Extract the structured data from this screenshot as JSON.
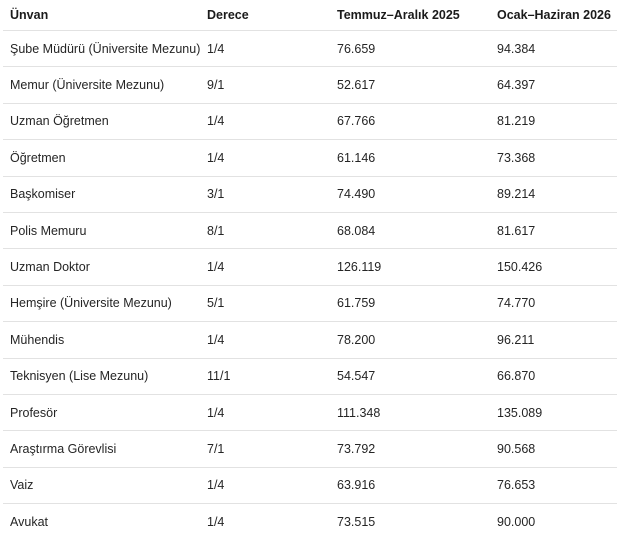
{
  "colors": {
    "background": "#ffffff",
    "header_text": "#1b1b1b",
    "body_text": "#252525",
    "divider": "#e2e2e2"
  },
  "table": {
    "columns": {
      "unvan": "Ünvan",
      "derece": "Derece",
      "temmuz_aralik_2025": "Temmuz–Aralık 2025",
      "ocak_haziran_2026": "Ocak–Haziran 2026"
    },
    "rows": [
      {
        "unvan": "Şube Müdürü (Üniversite Mezunu)",
        "derece": "1/4",
        "temmuz_aralik_2025": "76.659",
        "ocak_haziran_2026": "94.384"
      },
      {
        "unvan": "Memur (Üniversite Mezunu)",
        "derece": "9/1",
        "temmuz_aralik_2025": "52.617",
        "ocak_haziran_2026": "64.397"
      },
      {
        "unvan": "Uzman Öğretmen",
        "derece": "1/4",
        "temmuz_aralik_2025": "67.766",
        "ocak_haziran_2026": "81.219"
      },
      {
        "unvan": "Öğretmen",
        "derece": "1/4",
        "temmuz_aralik_2025": "61.146",
        "ocak_haziran_2026": "73.368"
      },
      {
        "unvan": "Başkomiser",
        "derece": "3/1",
        "temmuz_aralik_2025": "74.490",
        "ocak_haziran_2026": "89.214"
      },
      {
        "unvan": "Polis Memuru",
        "derece": "8/1",
        "temmuz_aralik_2025": "68.084",
        "ocak_haziran_2026": "81.617"
      },
      {
        "unvan": "Uzman Doktor",
        "derece": "1/4",
        "temmuz_aralik_2025": "126.119",
        "ocak_haziran_2026": "150.426"
      },
      {
        "unvan": "Hemşire (Üniversite Mezunu)",
        "derece": "5/1",
        "temmuz_aralik_2025": "61.759",
        "ocak_haziran_2026": "74.770"
      },
      {
        "unvan": "Mühendis",
        "derece": "1/4",
        "temmuz_aralik_2025": "78.200",
        "ocak_haziran_2026": "96.211"
      },
      {
        "unvan": "Teknisyen (Lise Mezunu)",
        "derece": "11/1",
        "temmuz_aralik_2025": "54.547",
        "ocak_haziran_2026": "66.870"
      },
      {
        "unvan": "Profesör",
        "derece": "1/4",
        "temmuz_aralik_2025": "111.348",
        "ocak_haziran_2026": "135.089"
      },
      {
        "unvan": "Araştırma Görevlisi",
        "derece": "7/1",
        "temmuz_aralik_2025": "73.792",
        "ocak_haziran_2026": "90.568"
      },
      {
        "unvan": "Vaiz",
        "derece": "1/4",
        "temmuz_aralik_2025": "63.916",
        "ocak_haziran_2026": "76.653"
      },
      {
        "unvan": "Avukat",
        "derece": "1/4",
        "temmuz_aralik_2025": "73.515",
        "ocak_haziran_2026": "90.000"
      }
    ]
  },
  "chart_data": {
    "type": "table",
    "title": "",
    "columns": [
      "Ünvan",
      "Derece",
      "Temmuz–Aralık 2025",
      "Ocak–Haziran 2026"
    ],
    "rows": [
      [
        "Şube Müdürü (Üniversite Mezunu)",
        "1/4",
        "76.659",
        "94.384"
      ],
      [
        "Memur (Üniversite Mezunu)",
        "9/1",
        "52.617",
        "64.397"
      ],
      [
        "Uzman Öğretmen",
        "1/4",
        "67.766",
        "81.219"
      ],
      [
        "Öğretmen",
        "1/4",
        "61.146",
        "73.368"
      ],
      [
        "Başkomiser",
        "3/1",
        "74.490",
        "89.214"
      ],
      [
        "Polis Memuru",
        "8/1",
        "68.084",
        "81.617"
      ],
      [
        "Uzman Doktor",
        "1/4",
        "126.119",
        "150.426"
      ],
      [
        "Hemşire (Üniversite Mezunu)",
        "5/1",
        "61.759",
        "74.770"
      ],
      [
        "Mühendis",
        "1/4",
        "78.200",
        "96.211"
      ],
      [
        "Teknisyen (Lise Mezunu)",
        "11/1",
        "54.547",
        "66.870"
      ],
      [
        "Profesör",
        "1/4",
        "111.348",
        "135.089"
      ],
      [
        "Araştırma Görevlisi",
        "7/1",
        "73.792",
        "90.568"
      ],
      [
        "Vaiz",
        "1/4",
        "63.916",
        "76.653"
      ],
      [
        "Avukat",
        "1/4",
        "73.515",
        "90.000"
      ]
    ]
  }
}
